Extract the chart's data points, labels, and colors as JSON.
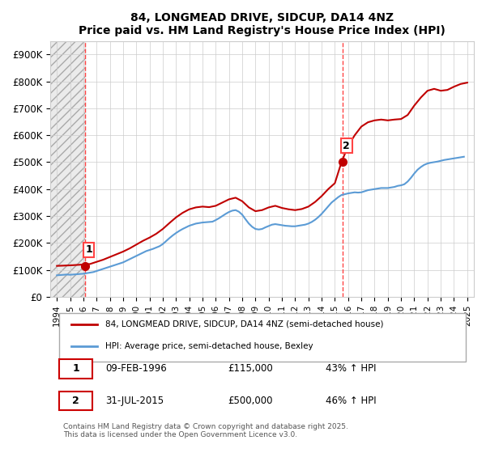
{
  "title": "84, LONGMEAD DRIVE, SIDCUP, DA14 4NZ",
  "subtitle": "Price paid vs. HM Land Registry's House Price Index (HPI)",
  "xlim": [
    1993.5,
    2025.5
  ],
  "ylim": [
    0,
    950000
  ],
  "yticks": [
    0,
    100000,
    200000,
    300000,
    400000,
    500000,
    600000,
    700000,
    800000,
    900000
  ],
  "ytick_labels": [
    "£0",
    "£100K",
    "£200K",
    "£300K",
    "£400K",
    "£500K",
    "£600K",
    "£700K",
    "£800K",
    "£900K"
  ],
  "xticks": [
    1994,
    1995,
    1996,
    1997,
    1998,
    1999,
    2000,
    2001,
    2002,
    2003,
    2004,
    2005,
    2006,
    2007,
    2008,
    2009,
    2010,
    2011,
    2012,
    2013,
    2014,
    2015,
    2016,
    2017,
    2018,
    2019,
    2020,
    2021,
    2022,
    2023,
    2024,
    2025
  ],
  "sale1_year": 1996.1,
  "sale1_price": 115000,
  "sale1_label": "1",
  "sale2_year": 2015.58,
  "sale2_price": 500000,
  "sale2_label": "2",
  "hpi_color": "#5b9bd5",
  "property_color": "#c00000",
  "vline_color": "#ff4444",
  "background_hatch_color": "#e8e8e8",
  "grid_color": "#cccccc",
  "legend_line1": "84, LONGMEAD DRIVE, SIDCUP, DA14 4NZ (semi-detached house)",
  "legend_line2": "HPI: Average price, semi-detached house, Bexley",
  "table_row1": [
    "1",
    "09-FEB-1996",
    "£115,000",
    "43% ↑ HPI"
  ],
  "table_row2": [
    "2",
    "31-JUL-2015",
    "£500,000",
    "46% ↑ HPI"
  ],
  "footer": "Contains HM Land Registry data © Crown copyright and database right 2025.\nThis data is licensed under the Open Government Licence v3.0.",
  "hpi_data_x": [
    1994.0,
    1994.25,
    1994.5,
    1994.75,
    1995.0,
    1995.25,
    1995.5,
    1995.75,
    1996.0,
    1996.25,
    1996.5,
    1996.75,
    1997.0,
    1997.25,
    1997.5,
    1997.75,
    1998.0,
    1998.25,
    1998.5,
    1998.75,
    1999.0,
    1999.25,
    1999.5,
    1999.75,
    2000.0,
    2000.25,
    2000.5,
    2000.75,
    2001.0,
    2001.25,
    2001.5,
    2001.75,
    2002.0,
    2002.25,
    2002.5,
    2002.75,
    2003.0,
    2003.25,
    2003.5,
    2003.75,
    2004.0,
    2004.25,
    2004.5,
    2004.75,
    2005.0,
    2005.25,
    2005.5,
    2005.75,
    2006.0,
    2006.25,
    2006.5,
    2006.75,
    2007.0,
    2007.25,
    2007.5,
    2007.75,
    2008.0,
    2008.25,
    2008.5,
    2008.75,
    2009.0,
    2009.25,
    2009.5,
    2009.75,
    2010.0,
    2010.25,
    2010.5,
    2010.75,
    2011.0,
    2011.25,
    2011.5,
    2011.75,
    2012.0,
    2012.25,
    2012.5,
    2012.75,
    2013.0,
    2013.25,
    2013.5,
    2013.75,
    2014.0,
    2014.25,
    2014.5,
    2014.75,
    2015.0,
    2015.25,
    2015.5,
    2015.75,
    2016.0,
    2016.25,
    2016.5,
    2016.75,
    2017.0,
    2017.25,
    2017.5,
    2017.75,
    2018.0,
    2018.25,
    2018.5,
    2018.75,
    2019.0,
    2019.25,
    2019.5,
    2019.75,
    2020.0,
    2020.25,
    2020.5,
    2020.75,
    2021.0,
    2021.25,
    2021.5,
    2021.75,
    2022.0,
    2022.25,
    2022.5,
    2022.75,
    2023.0,
    2023.25,
    2023.5,
    2023.75,
    2024.0,
    2024.25,
    2024.5,
    2024.75
  ],
  "hpi_data_y": [
    80000,
    81000,
    82000,
    83000,
    82000,
    83000,
    84000,
    85000,
    86000,
    88000,
    90000,
    92000,
    96000,
    100000,
    104000,
    108000,
    112000,
    116000,
    120000,
    124000,
    128000,
    134000,
    140000,
    146000,
    152000,
    158000,
    164000,
    170000,
    174000,
    178000,
    183000,
    188000,
    196000,
    207000,
    218000,
    228000,
    237000,
    245000,
    252000,
    258000,
    264000,
    268000,
    272000,
    274000,
    276000,
    277000,
    278000,
    279000,
    285000,
    292000,
    300000,
    308000,
    315000,
    320000,
    322000,
    316000,
    305000,
    288000,
    272000,
    260000,
    252000,
    250000,
    252000,
    258000,
    263000,
    268000,
    270000,
    268000,
    266000,
    264000,
    263000,
    262000,
    262000,
    264000,
    266000,
    268000,
    272000,
    278000,
    286000,
    296000,
    308000,
    322000,
    336000,
    350000,
    360000,
    370000,
    378000,
    381000,
    384000,
    386000,
    388000,
    387000,
    388000,
    392000,
    396000,
    398000,
    400000,
    402000,
    404000,
    404000,
    404000,
    406000,
    408000,
    412000,
    414000,
    418000,
    428000,
    442000,
    458000,
    472000,
    482000,
    490000,
    495000,
    498000,
    500000,
    502000,
    505000,
    508000,
    510000,
    512000,
    514000,
    516000,
    518000,
    520000
  ],
  "property_data_x": [
    1994.0,
    1994.5,
    1995.0,
    1995.5,
    1996.0,
    1996.5,
    1997.0,
    1997.5,
    1998.0,
    1998.5,
    1999.0,
    1999.5,
    2000.0,
    2000.5,
    2001.0,
    2001.5,
    2002.0,
    2002.5,
    2003.0,
    2003.5,
    2004.0,
    2004.5,
    2005.0,
    2005.5,
    2006.0,
    2006.5,
    2007.0,
    2007.5,
    2008.0,
    2008.5,
    2009.0,
    2009.5,
    2010.0,
    2010.5,
    2011.0,
    2011.5,
    2012.0,
    2012.5,
    2013.0,
    2013.5,
    2014.0,
    2014.5,
    2015.0,
    2015.5,
    2016.0,
    2016.5,
    2017.0,
    2017.5,
    2018.0,
    2018.5,
    2019.0,
    2019.5,
    2020.0,
    2020.5,
    2021.0,
    2021.5,
    2022.0,
    2022.5,
    2023.0,
    2023.5,
    2024.0,
    2024.5,
    2025.0
  ],
  "property_data_y": [
    115000,
    116000,
    117000,
    118500,
    120000,
    122000,
    130000,
    138000,
    148000,
    158000,
    168000,
    180000,
    194000,
    208000,
    220000,
    234000,
    252000,
    274000,
    295000,
    312000,
    325000,
    332000,
    335000,
    333000,
    338000,
    350000,
    362000,
    368000,
    355000,
    332000,
    318000,
    322000,
    332000,
    338000,
    330000,
    325000,
    322000,
    326000,
    335000,
    352000,
    374000,
    400000,
    422000,
    500000,
    560000,
    600000,
    632000,
    648000,
    655000,
    658000,
    655000,
    658000,
    660000,
    675000,
    710000,
    740000,
    765000,
    772000,
    765000,
    768000,
    780000,
    790000,
    795000
  ]
}
